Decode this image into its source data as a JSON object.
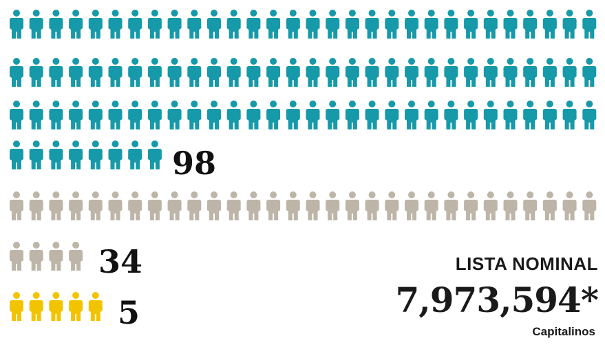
{
  "chart_data": {
    "type": "pictograph",
    "series": [
      {
        "value": 98,
        "label": "98",
        "color": "#1699a8"
      },
      {
        "value": 34,
        "label": "34",
        "color": "#bcb5a8"
      },
      {
        "value": 5,
        "label": "5",
        "color": "#f2c400"
      }
    ],
    "icons_per_row": 30
  },
  "summary": {
    "title": "LISTA NOMINAL",
    "value": "7,973,594*",
    "note": "Capitalinos"
  }
}
